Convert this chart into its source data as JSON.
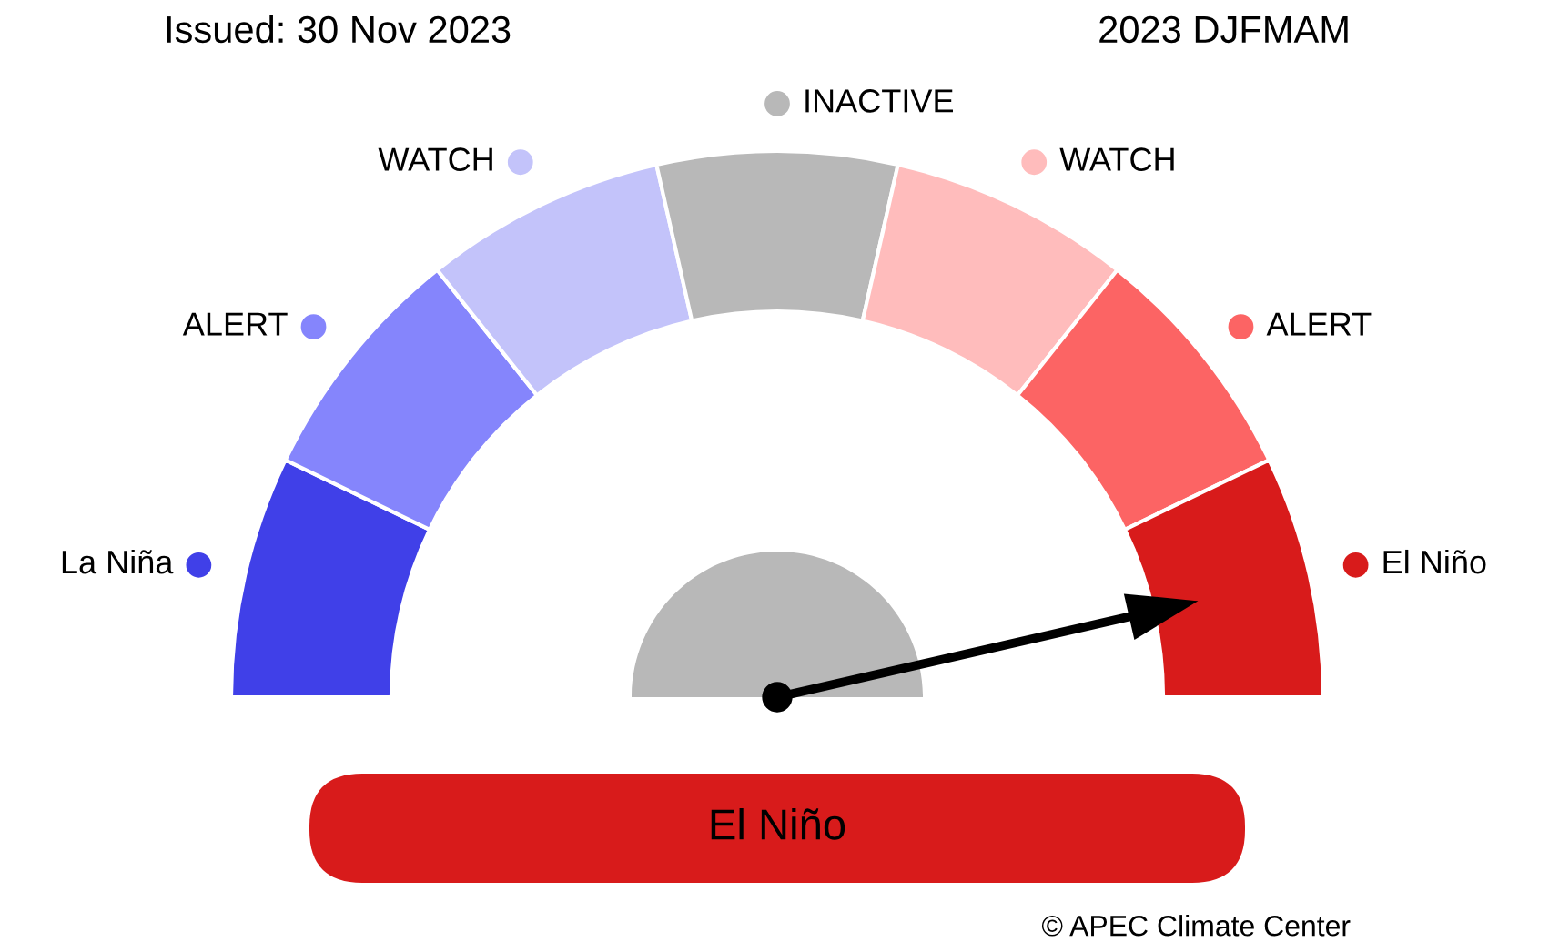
{
  "chart_data": {
    "type": "donut",
    "title": "Issued: 30 Nov 2023",
    "subtitle": "2023 DJFMAM",
    "categories": [
      "La Niña",
      "ALERT",
      "WATCH",
      "INACTIVE",
      "WATCH",
      "ALERT",
      "El Niño"
    ],
    "values": [
      14.3,
      14.3,
      14.3,
      14.2,
      14.3,
      14.3,
      14.3
    ],
    "colors": [
      "#4040e8",
      "#8585fc",
      "#c3c3fa",
      "#b8b8b8",
      "#ffbcbc",
      "#fc6464",
      "#d81b1b"
    ],
    "needle": "El Niño",
    "legend": "top",
    "annotations": [
      "El Niño",
      "© APEC Climate Center"
    ]
  }
}
